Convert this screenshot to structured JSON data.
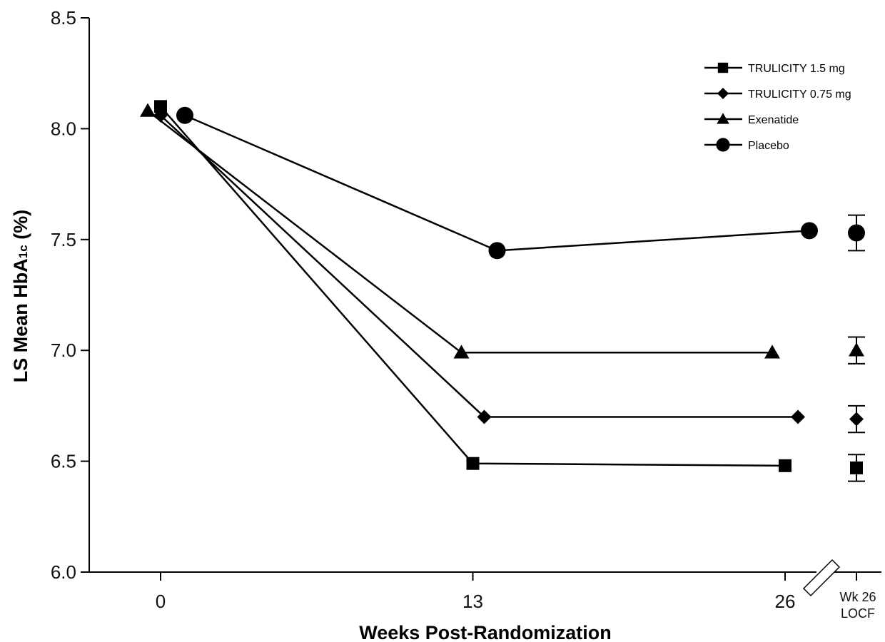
{
  "chart_data": {
    "type": "line",
    "title": "",
    "xlabel": "Weeks Post-Randomization",
    "ylabel_main": "LS Mean HbA",
    "ylabel_sub": "1c",
    "ylabel_tail": " (%)",
    "ylim": [
      6.0,
      8.5
    ],
    "yticks": [
      "6.0",
      "6.5",
      "7.0",
      "7.5",
      "8.0",
      "8.5"
    ],
    "x_ticks": [
      {
        "x": 0,
        "label": "0"
      },
      {
        "x": 13,
        "label": "13"
      },
      {
        "x": 26,
        "label": "26"
      }
    ],
    "locf_label_line1": "Wk 26",
    "locf_label_line2": "LOCF",
    "legend_position": "top-right",
    "series": [
      {
        "name": "TRULICITY 1.5 mg",
        "marker": "square",
        "points": [
          {
            "x": 0,
            "y": 8.1
          },
          {
            "x": 13,
            "y": 6.49
          },
          {
            "x": 26,
            "y": 6.48
          }
        ],
        "locf": {
          "y": 6.47,
          "ci": [
            6.41,
            6.53
          ]
        }
      },
      {
        "name": "TRULICITY 0.75 mg",
        "marker": "diamond",
        "points": [
          {
            "x": 0,
            "y": 8.06
          },
          {
            "x": 13,
            "y": 6.7
          },
          {
            "x": 26,
            "y": 6.7
          }
        ],
        "locf": {
          "y": 6.69,
          "ci": [
            6.63,
            6.75
          ]
        }
      },
      {
        "name": "Exenatide",
        "marker": "triangle",
        "points": [
          {
            "x": 0,
            "y": 8.08
          },
          {
            "x": 13,
            "y": 6.99
          },
          {
            "x": 26,
            "y": 6.99
          }
        ],
        "locf": {
          "y": 7.0,
          "ci": [
            6.94,
            7.06
          ]
        }
      },
      {
        "name": "Placebo",
        "marker": "circle",
        "points": [
          {
            "x": 0,
            "y": 8.06
          },
          {
            "x": 13,
            "y": 7.45
          },
          {
            "x": 26,
            "y": 7.54
          }
        ],
        "locf": {
          "y": 7.53,
          "ci": [
            7.45,
            7.61
          ]
        }
      }
    ]
  }
}
